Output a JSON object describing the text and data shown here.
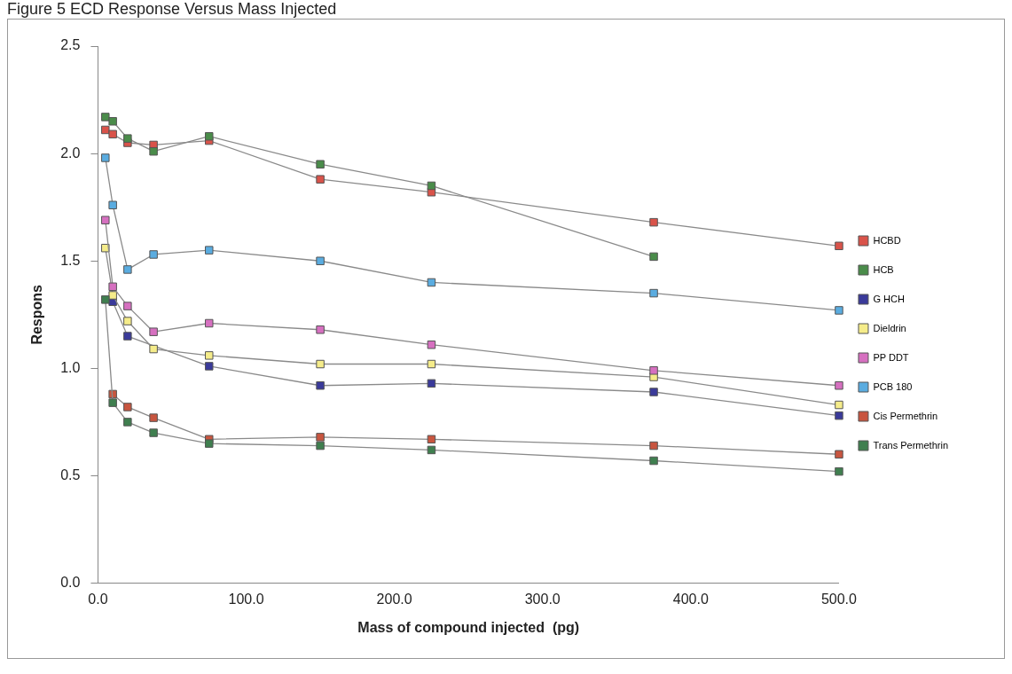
{
  "chart_data": {
    "type": "line",
    "title": "Figure 5  ECD Response Versus Mass Injected",
    "xlabel": "Mass of compound injected  (pg)",
    "ylabel": "Respons",
    "x": [
      5,
      10,
      20,
      37.5,
      75,
      150,
      225,
      375,
      500
    ],
    "xlim": [
      0,
      500
    ],
    "xticks": [
      {
        "value": 0,
        "label": "0.0"
      },
      {
        "value": 100,
        "label": "100.0"
      },
      {
        "value": 200,
        "label": "200.0"
      },
      {
        "value": 300,
        "label": "300.0"
      },
      {
        "value": 400,
        "label": "400.0"
      },
      {
        "value": 500,
        "label": "500.0"
      }
    ],
    "ylim": [
      0,
      2.5
    ],
    "yticks": [
      {
        "value": 0,
        "label": "0.0"
      },
      {
        "value": 0.5,
        "label": "0.5"
      },
      {
        "value": 1,
        "label": "1.0"
      },
      {
        "value": 1.5,
        "label": "1.5"
      },
      {
        "value": 2,
        "label": "2.0"
      },
      {
        "value": 2.5,
        "label": "2.5"
      }
    ],
    "grid": false,
    "legend": "right",
    "marker": "square",
    "line_style": "solid",
    "series": [
      {
        "name": "HCBD",
        "color": "#d9534a",
        "values": [
          2.11,
          2.09,
          2.05,
          2.04,
          2.06,
          1.88,
          1.82,
          1.68,
          1.57
        ]
      },
      {
        "name": "HCB",
        "color": "#4a8c4a",
        "values": [
          2.17,
          2.15,
          2.07,
          2.01,
          2.08,
          1.95,
          1.85,
          1.52,
          null
        ]
      },
      {
        "name": "G HCH",
        "color": "#3a3a9a",
        "values": [
          null,
          1.31,
          1.15,
          null,
          1.01,
          0.92,
          0.93,
          0.89,
          0.78
        ]
      },
      {
        "name": "Dieldrin",
        "color": "#f5ec8a",
        "values": [
          1.56,
          1.34,
          1.22,
          1.09,
          1.06,
          1.02,
          1.02,
          0.96,
          0.83
        ]
      },
      {
        "name": "PP DDT",
        "color": "#d670c0",
        "values": [
          1.69,
          1.38,
          1.29,
          1.17,
          1.21,
          1.18,
          1.11,
          0.99,
          0.92
        ]
      },
      {
        "name": "PCB 180",
        "color": "#5aace0",
        "values": [
          1.98,
          1.76,
          1.46,
          1.53,
          1.55,
          1.5,
          1.4,
          1.35,
          1.27
        ]
      },
      {
        "name": "Cis Permethrin",
        "color": "#c8553f",
        "values": [
          null,
          0.88,
          0.82,
          0.77,
          0.67,
          0.68,
          0.67,
          0.64,
          0.6
        ]
      },
      {
        "name": "Trans Permethrin",
        "color": "#3f7f4f",
        "values": [
          1.32,
          0.84,
          0.75,
          0.7,
          0.65,
          0.64,
          0.62,
          0.57,
          0.52
        ]
      }
    ]
  }
}
